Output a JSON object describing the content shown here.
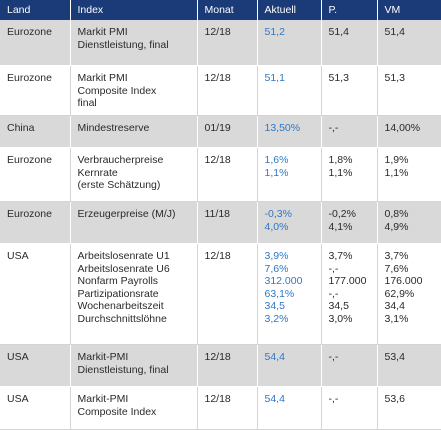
{
  "headers": [
    "Land",
    "Index",
    "Monat",
    "Aktuell",
    "P.",
    "VM"
  ],
  "colors": {
    "header_bg": "#1a3a78",
    "actual_value": "#2f78c4",
    "row_shade": "#d9d9d9"
  },
  "rows": [
    {
      "land": "Eurozone",
      "index": [
        "Markit PMI",
        "Dienstleistung, final"
      ],
      "monat": "12/18",
      "aktuell": [
        "51,2"
      ],
      "p": [
        "51,4"
      ],
      "vm": [
        "51,4"
      ]
    },
    {
      "land": "Eurozone",
      "index": [
        "Markit PMI",
        "Composite Index",
        "final"
      ],
      "monat": "12/18",
      "aktuell": [
        "51,1"
      ],
      "p": [
        "51,3"
      ],
      "vm": [
        "51,3"
      ]
    },
    {
      "land": "China",
      "index": [
        "Mindestreserve"
      ],
      "monat": "01/19",
      "aktuell": [
        "13,50%"
      ],
      "p": [
        "-,-"
      ],
      "vm": [
        "14,00%"
      ]
    },
    {
      "land": "Eurozone",
      "index": [
        "Verbraucherpreise",
        "Kernrate",
        "(erste Schätzung)"
      ],
      "monat": "12/18",
      "aktuell": [
        "1,6%",
        "1,1%"
      ],
      "p": [
        "1,8%",
        "1,1%"
      ],
      "vm": [
        "1,9%",
        "1,1%"
      ]
    },
    {
      "land": "Eurozone",
      "index": [
        "Erzeugerpreise (M/J)"
      ],
      "monat": "11/18",
      "aktuell": [
        "-0,3%",
        " 4,0%"
      ],
      "p": [
        "-0,2%",
        " 4,1%"
      ],
      "vm": [
        "0,8%",
        "4,9%"
      ]
    },
    {
      "land": "USA",
      "index": [
        "Arbeitslosenrate U1",
        "Arbeitslosenrate U6",
        "Nonfarm Payrolls",
        "Partizipationsrate",
        "Wochenarbeitszeit",
        "Durchschnittslöhne"
      ],
      "monat": "12/18",
      "aktuell": [
        "3,9%",
        "7,6%",
        "312.000",
        "63,1%",
        "34,5",
        "3,2%"
      ],
      "p": [
        "3,7%",
        "-,-",
        "177.000",
        "-,-",
        "34,5",
        "3,0%"
      ],
      "vm": [
        "3,7%",
        "7,6%",
        "176.000",
        "62,9%",
        "34,4",
        "3,1%"
      ]
    },
    {
      "land": "USA",
      "index": [
        "Markit-PMI",
        "Dienstleistung, final"
      ],
      "monat": "12/18",
      "aktuell": [
        "54,4"
      ],
      "p": [
        "-,-"
      ],
      "vm": [
        "53,4"
      ]
    },
    {
      "land": "USA",
      "index": [
        "Markit-PMI",
        "Composite Index"
      ],
      "monat": "12/18",
      "aktuell": [
        "54,4"
      ],
      "p": [
        "-,-"
      ],
      "vm": [
        "53,6"
      ]
    }
  ]
}
